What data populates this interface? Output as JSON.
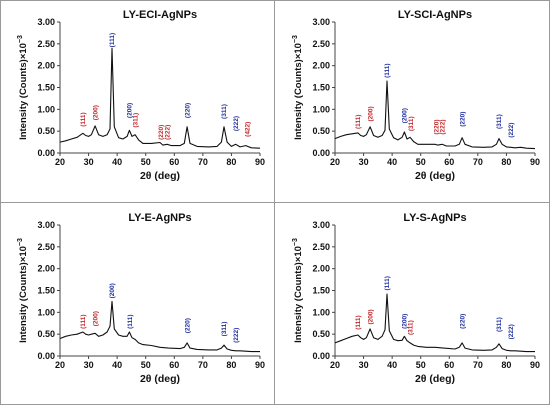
{
  "colors": {
    "red": "#c0282b",
    "blue": "#1f2f9e",
    "line": "#111111",
    "frame": "#444444"
  },
  "chart_data": [
    {
      "type": "line",
      "title": "LY-ECI-AgNPs",
      "xlabel": "2θ (deg)",
      "ylabel": "Intensity (Counts)×10",
      "ylabel_exp": "−3",
      "xlim": [
        20,
        90
      ],
      "ylim": [
        0,
        3
      ],
      "xticks": [
        "20",
        "30",
        "40",
        "50",
        "60",
        "70",
        "80",
        "90"
      ],
      "yticks": [
        "0.00",
        "0.50",
        "1.00",
        "1.50",
        "2.00",
        "2.50",
        "3.00"
      ],
      "peaks": [
        {
          "label": "(111)",
          "x": 28,
          "y": 0.6,
          "color": "red"
        },
        {
          "label": "(200)",
          "x": 32.3,
          "y": 0.75,
          "color": "red"
        },
        {
          "label": "(111)",
          "x": 38.2,
          "y": 2.42,
          "color": "blue"
        },
        {
          "label": "(200)",
          "x": 44.3,
          "y": 0.8,
          "color": "blue"
        },
        {
          "label": "(311)",
          "x": 46.3,
          "y": 0.58,
          "color": "red"
        },
        {
          "label": "(220)",
          "x": 55.2,
          "y": 0.3,
          "color": "red"
        },
        {
          "label": "(222)",
          "x": 57.5,
          "y": 0.3,
          "color": "red"
        },
        {
          "label": "(220)",
          "x": 64.5,
          "y": 0.8,
          "color": "blue"
        },
        {
          "label": "(311)",
          "x": 77.4,
          "y": 0.78,
          "color": "blue"
        },
        {
          "label": "(222)",
          "x": 81.5,
          "y": 0.5,
          "color": "blue"
        },
        {
          "label": "(422)",
          "x": 85.5,
          "y": 0.37,
          "color": "red"
        }
      ],
      "series": [
        {
          "x": [
            20,
            22,
            24,
            26,
            28,
            29,
            30,
            31,
            32.3,
            33.5,
            35,
            36.5,
            37.5,
            38.2,
            39,
            40.5,
            42,
            43.5,
            44.3,
            45.2,
            46.3,
            47.5,
            49,
            52,
            55,
            56,
            57.5,
            59,
            62,
            63.5,
            64.5,
            65.5,
            68,
            72,
            75,
            76.5,
            77.4,
            78.5,
            80,
            81.5,
            83,
            85,
            87,
            90
          ],
          "y": [
            0.25,
            0.28,
            0.32,
            0.36,
            0.45,
            0.4,
            0.38,
            0.42,
            0.62,
            0.42,
            0.38,
            0.42,
            0.55,
            2.4,
            0.6,
            0.35,
            0.32,
            0.38,
            0.52,
            0.38,
            0.42,
            0.3,
            0.22,
            0.22,
            0.24,
            0.18,
            0.2,
            0.17,
            0.17,
            0.22,
            0.6,
            0.22,
            0.15,
            0.14,
            0.15,
            0.25,
            0.6,
            0.25,
            0.15,
            0.2,
            0.14,
            0.17,
            0.12,
            0.11
          ]
        }
      ]
    },
    {
      "type": "line",
      "title": "LY-SCI-AgNPs",
      "xlabel": "2θ (deg)",
      "ylabel": "Intensity (Counts)×10",
      "ylabel_exp": "−3",
      "xlim": [
        20,
        90
      ],
      "ylim": [
        0,
        3
      ],
      "xticks": [
        "20",
        "30",
        "40",
        "50",
        "60",
        "70",
        "80",
        "90"
      ],
      "yticks": [
        "0.00",
        "0.50",
        "1.00",
        "1.50",
        "2.00",
        "2.50",
        "3.00"
      ],
      "peaks": [
        {
          "label": "(111)",
          "x": 28,
          "y": 0.55,
          "color": "red"
        },
        {
          "label": "(200)",
          "x": 32.3,
          "y": 0.72,
          "color": "red"
        },
        {
          "label": "(111)",
          "x": 38.2,
          "y": 1.72,
          "color": "blue"
        },
        {
          "label": "(200)",
          "x": 44.3,
          "y": 0.68,
          "color": "blue"
        },
        {
          "label": "(311)",
          "x": 46.5,
          "y": 0.5,
          "color": "red"
        },
        {
          "label": "(220)",
          "x": 55.5,
          "y": 0.42,
          "color": "red"
        },
        {
          "label": "(222)",
          "x": 57.5,
          "y": 0.42,
          "color": "red"
        },
        {
          "label": "(220)",
          "x": 64.5,
          "y": 0.6,
          "color": "blue"
        },
        {
          "label": "(311)",
          "x": 77.4,
          "y": 0.55,
          "color": "blue"
        },
        {
          "label": "(222)",
          "x": 81.5,
          "y": 0.35,
          "color": "blue"
        }
      ],
      "series": [
        {
          "x": [
            20,
            22,
            24,
            26,
            28,
            29,
            30,
            31,
            32.3,
            33.5,
            35,
            36.5,
            37.5,
            38.2,
            39,
            40.5,
            42,
            43.5,
            44.3,
            45.2,
            46.3,
            47.5,
            49,
            52,
            55,
            56,
            57.5,
            59,
            62,
            63.5,
            64.5,
            65.5,
            68,
            72,
            75,
            76.5,
            77.4,
            78.5,
            80,
            81.5,
            83,
            85,
            87,
            90
          ],
          "y": [
            0.33,
            0.38,
            0.42,
            0.44,
            0.46,
            0.4,
            0.38,
            0.42,
            0.6,
            0.4,
            0.36,
            0.4,
            0.52,
            1.65,
            0.55,
            0.35,
            0.3,
            0.36,
            0.48,
            0.32,
            0.36,
            0.26,
            0.2,
            0.2,
            0.2,
            0.18,
            0.2,
            0.16,
            0.16,
            0.2,
            0.35,
            0.2,
            0.14,
            0.13,
            0.14,
            0.2,
            0.33,
            0.2,
            0.14,
            0.13,
            0.12,
            0.13,
            0.11,
            0.1
          ]
        }
      ]
    },
    {
      "type": "line",
      "title": "LY-E-AgNPs",
      "xlabel": "2θ (deg)",
      "ylabel": "Intensity (Counts)×10",
      "ylabel_exp": "−3",
      "xlim": [
        20,
        90
      ],
      "ylim": [
        0,
        3
      ],
      "xticks": [
        "20",
        "30",
        "40",
        "50",
        "60",
        "70",
        "80",
        "90"
      ],
      "yticks": [
        "0.00",
        "0.50",
        "1.00",
        "1.50",
        "2.00",
        "2.50",
        "3.00"
      ],
      "peaks": [
        {
          "label": "(111)",
          "x": 28,
          "y": 0.62,
          "color": "red"
        },
        {
          "label": "(200)",
          "x": 32.3,
          "y": 0.68,
          "color": "red"
        },
        {
          "label": "(200)",
          "x": 38.2,
          "y": 1.32,
          "color": "blue"
        },
        {
          "label": "(111)",
          "x": 44.5,
          "y": 0.62,
          "color": "blue"
        },
        {
          "label": "(220)",
          "x": 64.5,
          "y": 0.52,
          "color": "blue"
        },
        {
          "label": "(311)",
          "x": 77.4,
          "y": 0.45,
          "color": "blue"
        },
        {
          "label": "(222)",
          "x": 81.5,
          "y": 0.3,
          "color": "blue"
        }
      ],
      "series": [
        {
          "x": [
            20,
            22,
            24,
            26,
            28,
            29,
            30,
            31,
            32.3,
            33.5,
            35,
            36.5,
            37.5,
            38.2,
            39,
            40.5,
            42,
            43.5,
            44.3,
            45.2,
            46.3,
            47.5,
            49,
            52,
            55,
            58,
            62,
            63.5,
            64.5,
            65.5,
            68,
            72,
            75,
            76.5,
            77.4,
            78.5,
            80,
            81.5,
            83,
            85,
            87,
            90
          ],
          "y": [
            0.4,
            0.45,
            0.48,
            0.5,
            0.55,
            0.5,
            0.48,
            0.5,
            0.52,
            0.45,
            0.48,
            0.55,
            0.68,
            1.25,
            0.62,
            0.48,
            0.45,
            0.45,
            0.55,
            0.42,
            0.38,
            0.3,
            0.26,
            0.24,
            0.2,
            0.18,
            0.17,
            0.2,
            0.3,
            0.18,
            0.15,
            0.14,
            0.14,
            0.18,
            0.25,
            0.16,
            0.13,
            0.12,
            0.12,
            0.11,
            0.1,
            0.1
          ]
        }
      ]
    },
    {
      "type": "line",
      "title": "LY-S-AgNPs",
      "xlabel": "2θ (deg)",
      "ylabel": "Intensity (Counts)×10",
      "ylabel_exp": "−3",
      "xlim": [
        20,
        90
      ],
      "ylim": [
        0,
        3
      ],
      "xticks": [
        "20",
        "30",
        "40",
        "50",
        "60",
        "70",
        "80",
        "90"
      ],
      "yticks": [
        "0.00",
        "0.50",
        "1.00",
        "1.50",
        "2.00",
        "2.50",
        "3.00"
      ],
      "peaks": [
        {
          "label": "(111)",
          "x": 28,
          "y": 0.6,
          "color": "red"
        },
        {
          "label": "(200)",
          "x": 32.3,
          "y": 0.72,
          "color": "red"
        },
        {
          "label": "(111)",
          "x": 38.2,
          "y": 1.5,
          "color": "blue"
        },
        {
          "label": "(200)",
          "x": 44.3,
          "y": 0.62,
          "color": "blue"
        },
        {
          "label": "(311)",
          "x": 46.3,
          "y": 0.48,
          "color": "red"
        },
        {
          "label": "(220)",
          "x": 64.5,
          "y": 0.62,
          "color": "blue"
        },
        {
          "label": "(311)",
          "x": 77.4,
          "y": 0.55,
          "color": "blue"
        },
        {
          "label": "(222)",
          "x": 81.5,
          "y": 0.38,
          "color": "blue"
        }
      ],
      "series": [
        {
          "x": [
            20,
            22,
            24,
            26,
            28,
            29,
            30,
            31,
            32.3,
            33.5,
            35,
            36.5,
            37.5,
            38.2,
            39,
            40.5,
            42,
            43.5,
            44.3,
            45.2,
            46.3,
            47.5,
            49,
            52,
            55,
            58,
            62,
            63.5,
            64.5,
            65.5,
            68,
            72,
            75,
            76.5,
            77.4,
            78.5,
            80,
            81.5,
            83,
            85,
            87,
            90
          ],
          "y": [
            0.3,
            0.35,
            0.4,
            0.45,
            0.48,
            0.42,
            0.38,
            0.42,
            0.62,
            0.42,
            0.38,
            0.45,
            0.6,
            1.42,
            0.58,
            0.38,
            0.35,
            0.36,
            0.45,
            0.35,
            0.3,
            0.25,
            0.22,
            0.2,
            0.2,
            0.18,
            0.16,
            0.2,
            0.3,
            0.18,
            0.14,
            0.13,
            0.14,
            0.2,
            0.28,
            0.17,
            0.13,
            0.12,
            0.12,
            0.11,
            0.1,
            0.1
          ]
        }
      ]
    }
  ]
}
